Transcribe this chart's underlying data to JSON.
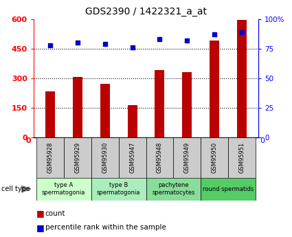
{
  "title": "GDS2390 / 1422321_a_at",
  "samples": [
    "GSM95928",
    "GSM95929",
    "GSM95930",
    "GSM95947",
    "GSM95948",
    "GSM95949",
    "GSM95950",
    "GSM95951"
  ],
  "counts": [
    235,
    305,
    270,
    165,
    340,
    330,
    490,
    595
  ],
  "percentiles": [
    78,
    80,
    79,
    76,
    83,
    82,
    87,
    89
  ],
  "ylim_left": [
    0,
    600
  ],
  "ylim_right": [
    0,
    100
  ],
  "yticks_left": [
    0,
    150,
    300,
    450,
    600
  ],
  "yticks_right": [
    0,
    25,
    50,
    75,
    100
  ],
  "ytick_labels_left": [
    "0",
    "150",
    "300",
    "450",
    "600"
  ],
  "ytick_labels_right": [
    "0",
    "25",
    "50",
    "75",
    "100%"
  ],
  "bar_color": "#bb0000",
  "scatter_color": "#0000cc",
  "sample_box_color": "#cccccc",
  "cell_types": [
    {
      "label": "type A\nspermatogonia",
      "samples_count": 2,
      "color": "#ccffcc"
    },
    {
      "label": "type B\nspermatogonia",
      "samples_count": 2,
      "color": "#aaeebb"
    },
    {
      "label": "pachytene\nspermatocytes",
      "samples_count": 2,
      "color": "#88dd99"
    },
    {
      "label": "round spermatids",
      "samples_count": 2,
      "color": "#55cc66"
    }
  ],
  "legend_count_label": "count",
  "legend_percentile_label": "percentile rank within the sample",
  "cell_type_label": "cell type",
  "background_color": "#ffffff"
}
